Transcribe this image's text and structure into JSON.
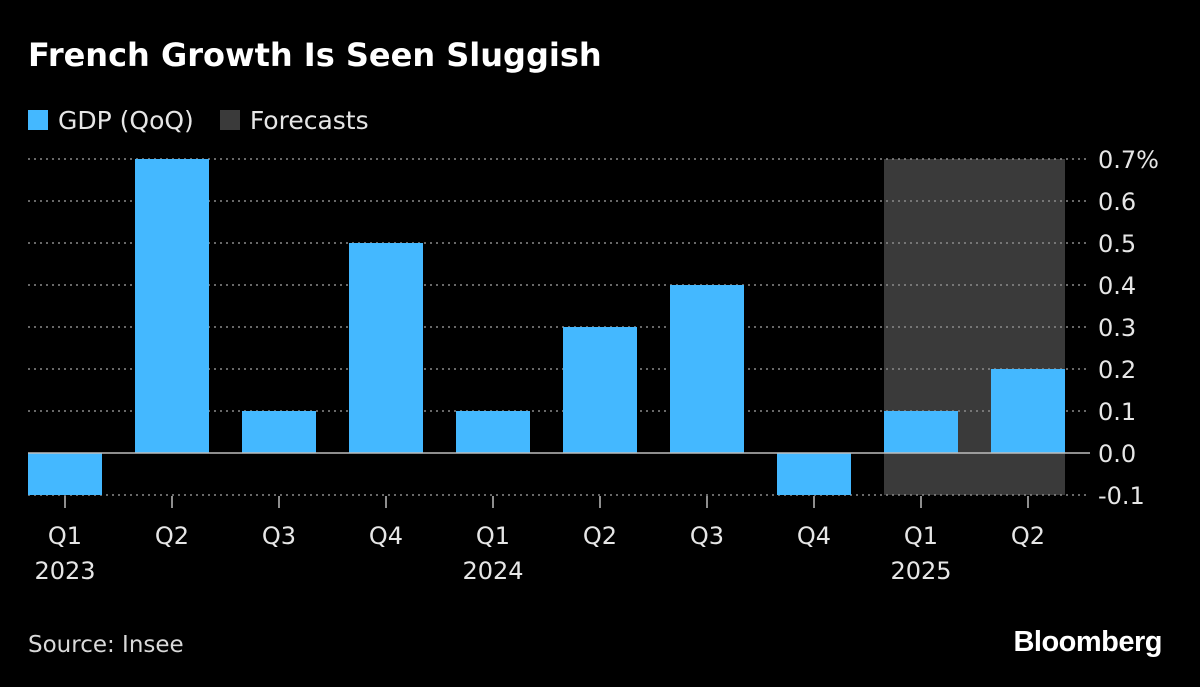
{
  "header": {
    "title": "French Growth Is Seen Sluggish"
  },
  "legend": [
    {
      "label": "GDP (QoQ)",
      "color": "#44b8ff"
    },
    {
      "label": "Forecasts",
      "color": "#3a3a3a"
    }
  ],
  "footer": {
    "source": "Source: Insee",
    "brand": "Bloomberg"
  },
  "chart_data": {
    "type": "bar",
    "title": "French Growth Is Seen Sluggish",
    "xlabel": "",
    "ylabel": "",
    "ylim": [
      -0.1,
      0.7
    ],
    "y_ticks": [
      "0.7%",
      "0.6",
      "0.5",
      "0.4",
      "0.3",
      "0.2",
      "0.1",
      "0.0",
      "-0.1"
    ],
    "y_tick_values": [
      0.7,
      0.6,
      0.5,
      0.4,
      0.3,
      0.2,
      0.1,
      0.0,
      -0.1
    ],
    "grid": true,
    "legend_position": "top-left",
    "categories": [
      "Q1",
      "Q2",
      "Q3",
      "Q4",
      "Q1",
      "Q2",
      "Q3",
      "Q4",
      "Q1",
      "Q2"
    ],
    "year_labels": [
      "2023",
      "",
      "",
      "",
      "2024",
      "",
      "",
      "",
      "2025",
      ""
    ],
    "series": [
      {
        "name": "GDP (QoQ)",
        "color": "#44b8ff",
        "values": [
          -0.1,
          0.7,
          0.1,
          0.5,
          0.1,
          0.3,
          0.4,
          -0.1,
          0.1,
          0.2
        ]
      }
    ],
    "forecast_categories": [
      8,
      9
    ],
    "forecast_color": "#3a3a3a"
  }
}
